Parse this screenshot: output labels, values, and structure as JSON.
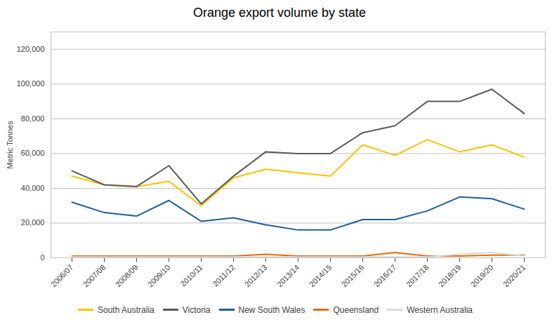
{
  "chart_data": {
    "type": "line",
    "title": "Orange export volume by state",
    "ylabel": "Metric Tonnes",
    "categories": [
      "2006/07",
      "2007/08",
      "2008/09",
      "2009/10",
      "2010/11",
      "2011/12",
      "2012/13",
      "2013/14",
      "2014/15",
      "2015/16",
      "2016/17",
      "2017/18",
      "2018/19",
      "2019/20",
      "2020/21"
    ],
    "series": [
      {
        "name": "South Australia",
        "color": "#FFC000",
        "values": [
          47000,
          42000,
          41000,
          44000,
          30000,
          46000,
          51000,
          49000,
          47000,
          65000,
          59000,
          68000,
          61000,
          65000,
          58000
        ]
      },
      {
        "name": "Victoria",
        "color": "#595959",
        "values": [
          50000,
          42000,
          41000,
          53000,
          31000,
          47000,
          61000,
          60000,
          60000,
          72000,
          76000,
          90000,
          90000,
          97000,
          83000
        ]
      },
      {
        "name": "New South Wales",
        "color": "#1F5C99",
        "values": [
          32000,
          26000,
          24000,
          33000,
          21000,
          23000,
          19000,
          16000,
          16000,
          22000,
          22000,
          27000,
          35000,
          34000,
          28000
        ]
      },
      {
        "name": "Queensland",
        "color": "#E36C09",
        "values": [
          1000,
          1000,
          1000,
          1000,
          1000,
          1000,
          2000,
          1000,
          1000,
          1000,
          3000,
          1000,
          1000,
          1500,
          1500
        ]
      },
      {
        "name": "Western Australia",
        "color": "#D9D9D9",
        "values": [
          500,
          500,
          500,
          500,
          500,
          500,
          500,
          500,
          500,
          500,
          500,
          500,
          2000,
          3000,
          1000
        ]
      }
    ],
    "ylim": [
      0,
      130000
    ],
    "yticks": [
      0,
      {
        "value": 20000,
        "label": "20,000"
      },
      {
        "value": 40000,
        "label": "40,000"
      },
      {
        "value": 60000,
        "label": "60,000"
      },
      {
        "value": 80000,
        "label": "80,000"
      },
      {
        "value": 100000,
        "label": "100,000"
      },
      {
        "value": 120000,
        "label": "120,000"
      }
    ],
    "grid": true,
    "legend": "bottom"
  }
}
